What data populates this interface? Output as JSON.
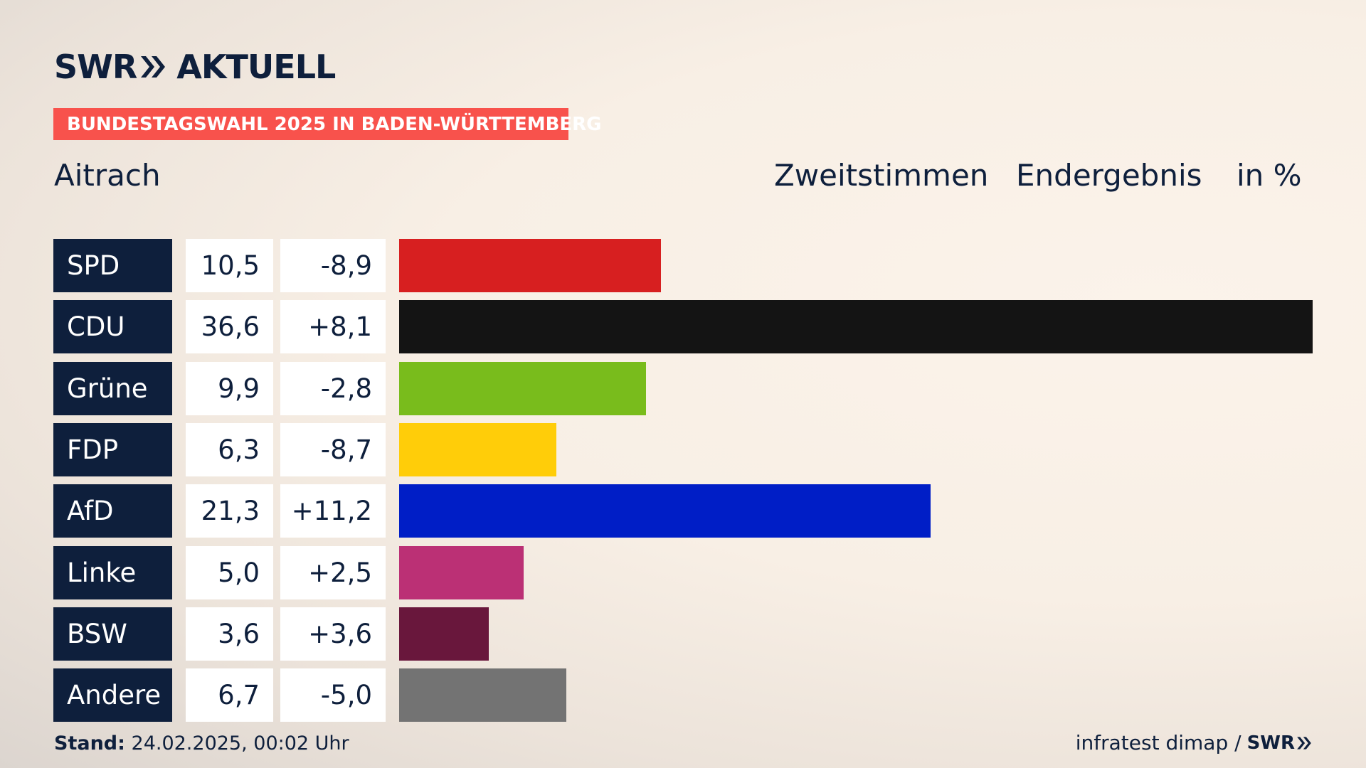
{
  "brand": {
    "swr": "SWR",
    "program": "AKTUELL",
    "footer_logo": "SWR"
  },
  "banner": "BUNDESTAGSWAHL 2025 IN BADEN-WÜRTTEMBERG",
  "place": "Aitrach",
  "headers": {
    "vote": "Zweitstimmen",
    "status": "Endergebnis",
    "unit": "in %"
  },
  "footer": {
    "stand_label": "Stand:",
    "stand_value": "24.02.2025, 00:02 Uhr",
    "source": "infratest dimap /"
  },
  "colors": {
    "navy": "#0e1f3c",
    "banner": "#f8524c"
  },
  "chart_data": {
    "type": "bar",
    "orientation": "horizontal",
    "xlim": [
      0,
      36.6
    ],
    "categories": [
      "SPD",
      "CDU",
      "Grüne",
      "FDP",
      "AfD",
      "Linke",
      "BSW",
      "Andere"
    ],
    "values": [
      10.5,
      36.6,
      9.9,
      6.3,
      21.3,
      5.0,
      3.6,
      6.7
    ],
    "value_labels": [
      "10,5",
      "36,6",
      "9,9",
      "6,3",
      "21,3",
      "5,0",
      "3,6",
      "6,7"
    ],
    "change_labels": [
      "-8,9",
      "+8,1",
      "-2,8",
      "-8,7",
      "+11,2",
      "+2,5",
      "+3,6",
      "-5,0"
    ],
    "changes": [
      -8.9,
      8.1,
      -2.8,
      -8.7,
      11.2,
      2.5,
      3.6,
      -5.0
    ],
    "colors": [
      "#d71f20",
      "#141414",
      "#79bc1c",
      "#ffcd09",
      "#001ec6",
      "#bb3075",
      "#69173c",
      "#737373"
    ]
  }
}
